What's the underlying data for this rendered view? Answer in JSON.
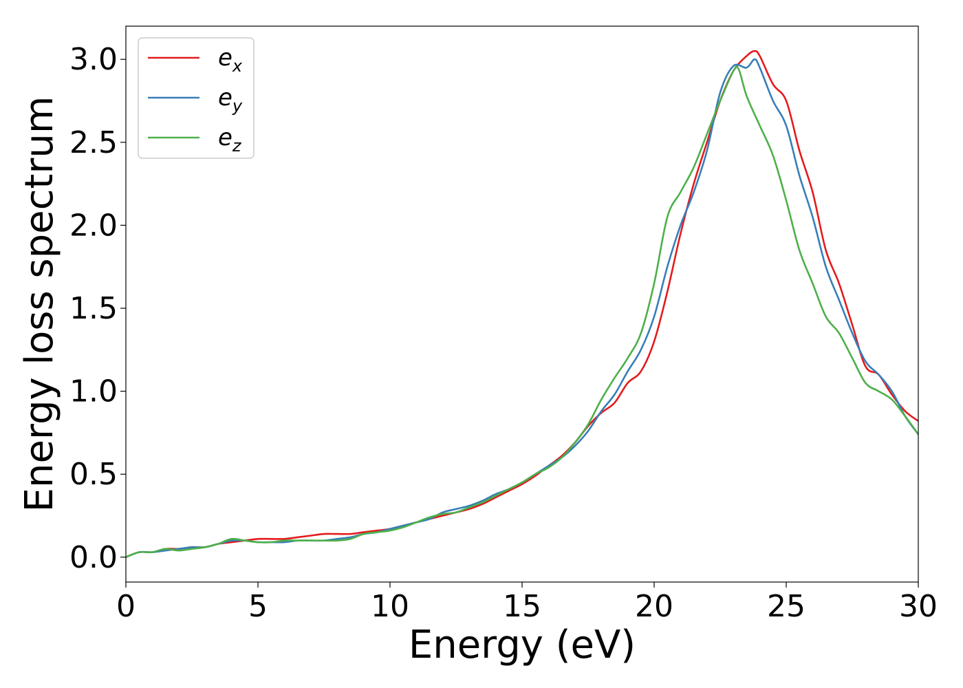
{
  "chart_data": {
    "type": "line",
    "title": "",
    "xlabel": "Energy (eV)",
    "ylabel": "Energy loss spectrum",
    "xlim": [
      0,
      30
    ],
    "ylim": [
      -0.15,
      3.2
    ],
    "xticks": [
      0,
      5,
      10,
      15,
      20,
      25,
      30
    ],
    "xtick_labels": [
      "0",
      "5",
      "10",
      "15",
      "20",
      "25",
      "30"
    ],
    "yticks": [
      0.0,
      0.5,
      1.0,
      1.5,
      2.0,
      2.5,
      3.0
    ],
    "ytick_labels": [
      "0.0",
      "0.5",
      "1.0",
      "1.5",
      "2.0",
      "2.5",
      "3.0"
    ],
    "grid": false,
    "legend_position": "top-left",
    "series": [
      {
        "name": "e",
        "subscript": "x",
        "color": "#e41a1c",
        "x": [
          0,
          0.5,
          1,
          1.5,
          2,
          2.5,
          3,
          3.5,
          4,
          4.5,
          5,
          5.5,
          6,
          6.5,
          7,
          7.5,
          8,
          8.5,
          9,
          9.5,
          10,
          10.5,
          11,
          11.5,
          12,
          12.5,
          13,
          13.5,
          14,
          14.5,
          15,
          15.5,
          16,
          16.5,
          17,
          17.5,
          18,
          18.5,
          19,
          19.5,
          20,
          20.5,
          21,
          21.5,
          22,
          22.5,
          23,
          23.5,
          23.8,
          24,
          24.5,
          25,
          25.5,
          26,
          26.5,
          27,
          27.5,
          28,
          28.5,
          29,
          29.5,
          30
        ],
        "y": [
          0.0,
          0.03,
          0.03,
          0.05,
          0.05,
          0.06,
          0.06,
          0.08,
          0.09,
          0.1,
          0.11,
          0.11,
          0.11,
          0.12,
          0.13,
          0.14,
          0.14,
          0.14,
          0.15,
          0.16,
          0.17,
          0.19,
          0.21,
          0.23,
          0.25,
          0.27,
          0.29,
          0.32,
          0.36,
          0.4,
          0.44,
          0.49,
          0.55,
          0.61,
          0.69,
          0.79,
          0.87,
          0.93,
          1.05,
          1.12,
          1.3,
          1.6,
          1.95,
          2.25,
          2.5,
          2.75,
          2.93,
          3.02,
          3.05,
          3.02,
          2.85,
          2.75,
          2.45,
          2.2,
          1.85,
          1.65,
          1.4,
          1.15,
          1.1,
          0.98,
          0.88,
          0.82
        ]
      },
      {
        "name": "e",
        "subscript": "y",
        "color": "#377eb8",
        "x": [
          0,
          0.5,
          1,
          1.5,
          2,
          2.5,
          3,
          3.5,
          4,
          4.5,
          5,
          5.5,
          6,
          6.5,
          7,
          7.5,
          8,
          8.5,
          9,
          9.5,
          10,
          10.5,
          11,
          11.5,
          12,
          12.5,
          13,
          13.5,
          14,
          14.5,
          15,
          15.5,
          16,
          16.5,
          17,
          17.5,
          18,
          18.5,
          19,
          19.5,
          20,
          20.5,
          21,
          21.5,
          22,
          22.5,
          23,
          23.5,
          23.8,
          24,
          24.5,
          25,
          25.5,
          26,
          26.5,
          27,
          27.5,
          28,
          28.5,
          29,
          29.5,
          30
        ],
        "y": [
          0.0,
          0.03,
          0.03,
          0.04,
          0.05,
          0.06,
          0.06,
          0.08,
          0.1,
          0.1,
          0.09,
          0.09,
          0.09,
          0.1,
          0.1,
          0.1,
          0.11,
          0.12,
          0.14,
          0.15,
          0.17,
          0.19,
          0.21,
          0.23,
          0.27,
          0.29,
          0.31,
          0.34,
          0.38,
          0.41,
          0.45,
          0.5,
          0.55,
          0.6,
          0.67,
          0.76,
          0.88,
          0.98,
          1.12,
          1.25,
          1.45,
          1.75,
          2.0,
          2.2,
          2.45,
          2.8,
          2.96,
          2.95,
          3.0,
          2.95,
          2.75,
          2.6,
          2.3,
          2.05,
          1.75,
          1.55,
          1.35,
          1.18,
          1.1,
          1.0,
          0.85,
          0.74
        ]
      },
      {
        "name": "e",
        "subscript": "z",
        "color": "#4daf4a",
        "x": [
          0,
          0.5,
          1,
          1.5,
          2,
          2.5,
          3,
          3.5,
          4,
          4.5,
          5,
          5.5,
          6,
          6.5,
          7,
          7.5,
          8,
          8.5,
          9,
          9.5,
          10,
          10.5,
          11,
          11.5,
          12,
          12.5,
          13,
          13.5,
          14,
          14.5,
          15,
          15.5,
          16,
          16.5,
          17,
          17.5,
          18,
          18.5,
          19,
          19.5,
          20,
          20.5,
          21,
          21.5,
          22,
          22.5,
          23,
          23.2,
          23.5,
          24,
          24.5,
          25,
          25.5,
          26,
          26.5,
          27,
          27.5,
          28,
          28.5,
          29,
          29.5,
          30
        ],
        "y": [
          0.0,
          0.03,
          0.03,
          0.05,
          0.04,
          0.05,
          0.06,
          0.08,
          0.11,
          0.1,
          0.09,
          0.09,
          0.1,
          0.1,
          0.1,
          0.1,
          0.1,
          0.11,
          0.14,
          0.15,
          0.16,
          0.18,
          0.21,
          0.24,
          0.26,
          0.27,
          0.3,
          0.33,
          0.37,
          0.41,
          0.45,
          0.5,
          0.54,
          0.6,
          0.69,
          0.8,
          0.95,
          1.08,
          1.2,
          1.35,
          1.65,
          2.05,
          2.2,
          2.35,
          2.55,
          2.75,
          2.93,
          2.94,
          2.78,
          2.6,
          2.42,
          2.15,
          1.85,
          1.65,
          1.45,
          1.35,
          1.2,
          1.05,
          1.0,
          0.95,
          0.85,
          0.74
        ]
      }
    ]
  }
}
